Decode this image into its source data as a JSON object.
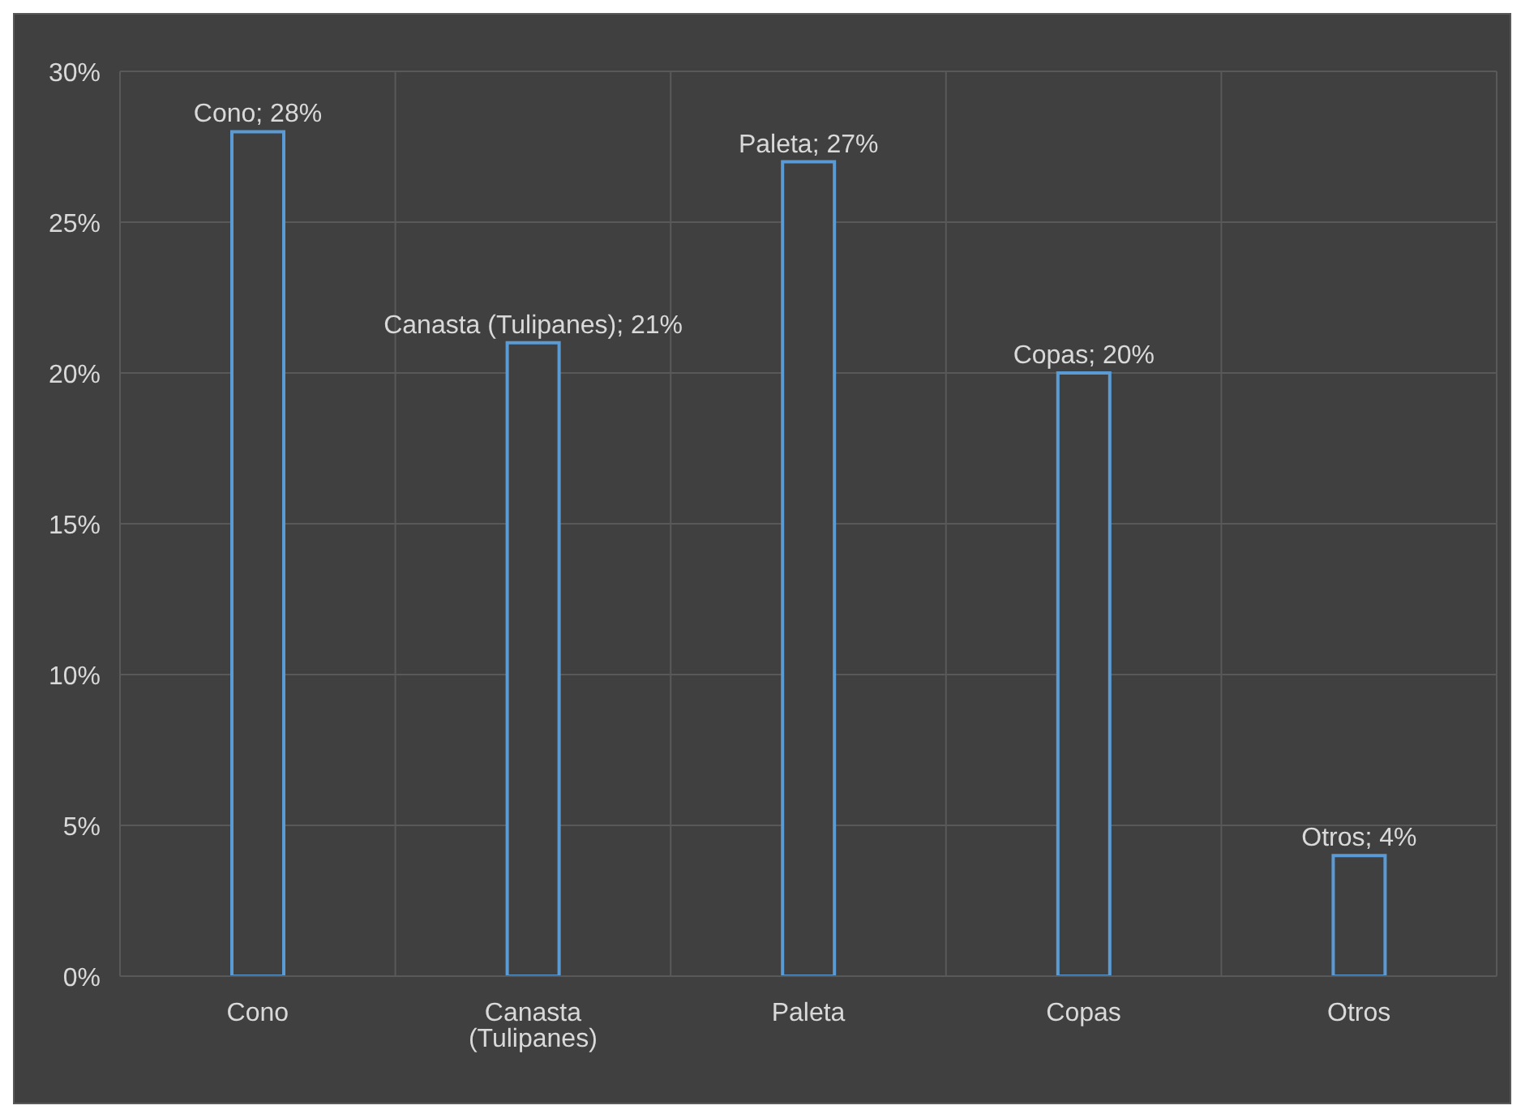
{
  "chart_data": {
    "type": "bar",
    "categories": [
      "Cono",
      "Canasta (Tulipanes)",
      "Paleta",
      "Copas",
      "Otros"
    ],
    "values": [
      28,
      21,
      27,
      20,
      4
    ],
    "value_labels": [
      "Cono; 28%",
      "Canasta (Tulipanes); 21%",
      "Paleta; 27%",
      "Copas; 20%",
      "Otros; 4%"
    ],
    "color": "#5b9bd5",
    "ylim": [
      0,
      30
    ],
    "yticks": [
      {
        "value": 0,
        "label": "0%"
      },
      {
        "value": 5,
        "label": "5%"
      },
      {
        "value": 10,
        "label": "10%"
      },
      {
        "value": 15,
        "label": "15%"
      },
      {
        "value": 20,
        "label": "20%"
      },
      {
        "value": 25,
        "label": "25%"
      },
      {
        "value": 30,
        "label": "30%"
      }
    ],
    "grid": true,
    "legend": false
  }
}
